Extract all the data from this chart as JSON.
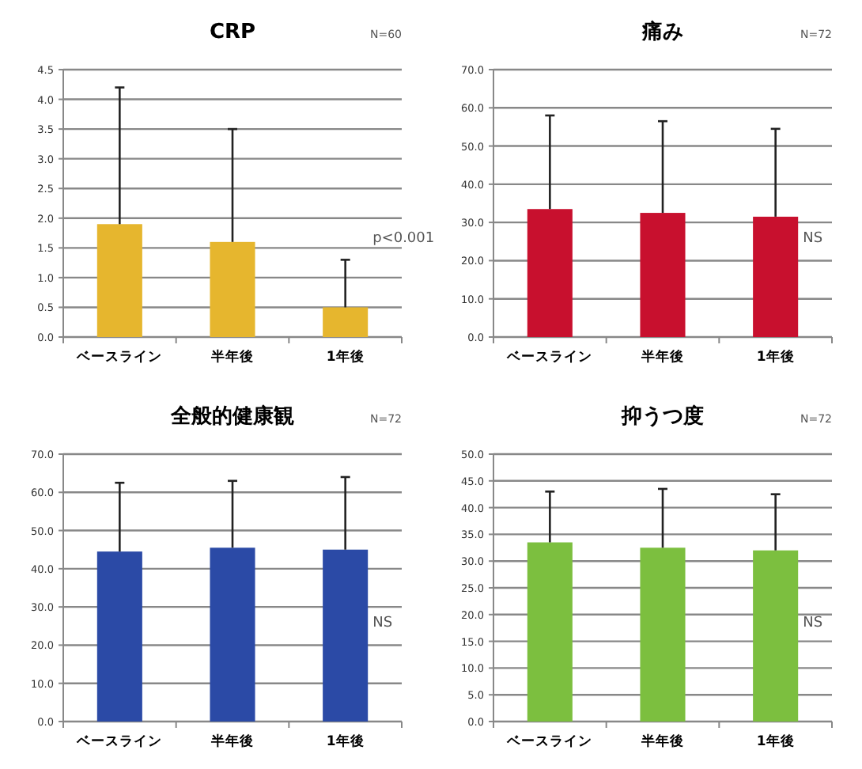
{
  "chart_data": [
    {
      "type": "bar",
      "title": "CRP",
      "categories": [
        "ベースライン",
        "半年後",
        "1年後"
      ],
      "values": [
        1.9,
        1.6,
        0.5
      ],
      "errors": [
        [
          1.9,
          4.2
        ],
        [
          1.6,
          3.5
        ],
        [
          0.5,
          1.3
        ]
      ],
      "color": "#e6b62e",
      "ylim": [
        0,
        4.5
      ],
      "yticks": [
        {
          "value": 0,
          "label": "0.0"
        },
        {
          "value": 0.5,
          "label": "0.5"
        },
        {
          "value": 1,
          "label": "1.0"
        },
        {
          "value": 1.5,
          "label": "1.5"
        },
        {
          "value": 2,
          "label": "2.0"
        },
        {
          "value": 2.5,
          "label": "2.5"
        },
        {
          "value": 3,
          "label": "3.0"
        },
        {
          "value": 3.5,
          "label": "3.5"
        },
        {
          "value": 4,
          "label": "4.0"
        },
        {
          "value": 4.5,
          "label": "4.5"
        }
      ],
      "grid": "y",
      "annotations": [
        "N=60",
        "p<0.001"
      ]
    },
    {
      "type": "bar",
      "title": "痛み",
      "categories": [
        "ベースライン",
        "半年後",
        "1年後"
      ],
      "values": [
        33.5,
        32.5,
        31.5
      ],
      "errors": [
        [
          33.5,
          58
        ],
        [
          32.5,
          56.5
        ],
        [
          31.5,
          54.5
        ]
      ],
      "color": "#c8102e",
      "ylim": [
        0,
        70
      ],
      "yticks": [
        {
          "value": 0,
          "label": "0.0"
        },
        {
          "value": 10,
          "label": "10.0"
        },
        {
          "value": 20,
          "label": "20.0"
        },
        {
          "value": 30,
          "label": "30.0"
        },
        {
          "value": 40,
          "label": "40.0"
        },
        {
          "value": 50,
          "label": "50.0"
        },
        {
          "value": 60,
          "label": "60.0"
        },
        {
          "value": 70,
          "label": "70.0"
        }
      ],
      "grid": "y",
      "annotations": [
        "N=72",
        "NS"
      ]
    },
    {
      "type": "bar",
      "title": "全般的健康観",
      "categories": [
        "ベースライン",
        "半年後",
        "1年後"
      ],
      "values": [
        44.5,
        45.5,
        45
      ],
      "errors": [
        [
          44.5,
          62.5
        ],
        [
          45.5,
          63
        ],
        [
          45,
          64
        ]
      ],
      "color": "#2b4aa6",
      "ylim": [
        0,
        70
      ],
      "yticks": [
        {
          "value": 0,
          "label": "0.0"
        },
        {
          "value": 10,
          "label": "10.0"
        },
        {
          "value": 20,
          "label": "20.0"
        },
        {
          "value": 30,
          "label": "30.0"
        },
        {
          "value": 40,
          "label": "40.0"
        },
        {
          "value": 50,
          "label": "50.0"
        },
        {
          "value": 60,
          "label": "60.0"
        },
        {
          "value": 70,
          "label": "70.0"
        }
      ],
      "grid": "y",
      "annotations": [
        "N=72",
        "NS"
      ]
    },
    {
      "type": "bar",
      "title": "抑うつ度",
      "categories": [
        "ベースライン",
        "半年後",
        "1年後"
      ],
      "values": [
        33.5,
        32.5,
        32
      ],
      "errors": [
        [
          33.5,
          43
        ],
        [
          32.5,
          43.5
        ],
        [
          32,
          42.5
        ]
      ],
      "color": "#7cbf3f",
      "ylim": [
        0,
        50
      ],
      "yticks": [
        {
          "value": 0,
          "label": "0.0"
        },
        {
          "value": 5,
          "label": "5.0"
        },
        {
          "value": 10,
          "label": "10.0"
        },
        {
          "value": 15,
          "label": "15.0"
        },
        {
          "value": 20,
          "label": "20.0"
        },
        {
          "value": 25,
          "label": "25.0"
        },
        {
          "value": 30,
          "label": "30.0"
        },
        {
          "value": 35,
          "label": "35.0"
        },
        {
          "value": 40,
          "label": "40.0"
        },
        {
          "value": 45,
          "label": "45.0"
        },
        {
          "value": 50,
          "label": "50.0"
        }
      ],
      "grid": "y",
      "annotations": [
        "N=72",
        "NS"
      ]
    }
  ]
}
